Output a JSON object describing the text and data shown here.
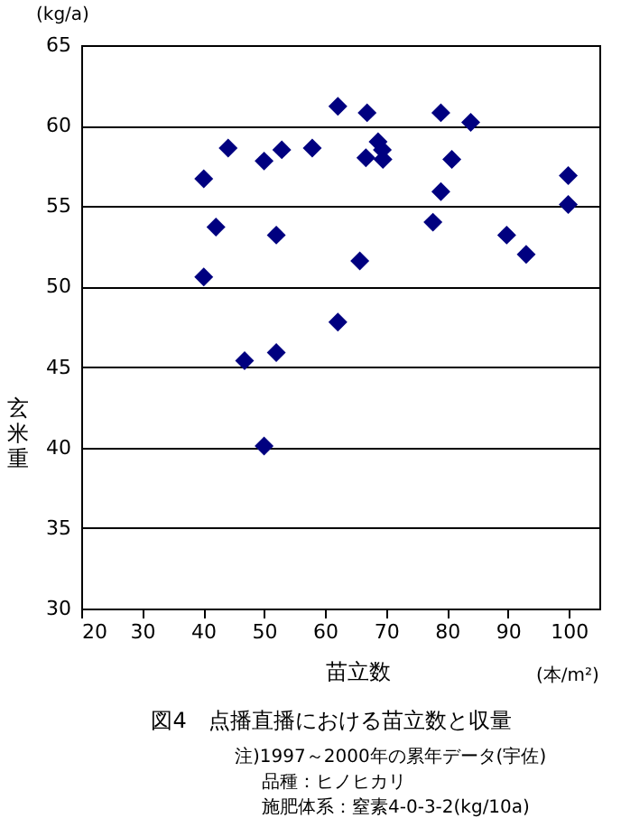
{
  "chart_data": {
    "type": "scatter",
    "title": "図4　点播直播における苗立数と収量",
    "xlabel": "苗立数",
    "ylabel": "玄米重",
    "annotations": [
      "(kg/a)",
      "(本/m²)",
      "注)1997～2000年の累年データ(宇佐)",
      "品種：ヒノヒカリ",
      "施肥体系：窒素4-0-3-2(kg/10a)"
    ],
    "x": [
      40.1,
      42.1,
      44.1,
      40.1,
      50.0,
      52.9,
      52.0,
      57.9,
      62.1,
      66.9,
      66.7,
      65.7,
      62.1,
      68.3,
      68.7,
      69.4,
      69.5,
      79.0,
      83.9,
      80.8,
      79.0,
      77.7,
      89.8,
      93.0,
      99.9,
      99.9,
      46.8,
      52.0,
      50.0
    ],
    "series": [
      {
        "color": "#000080",
        "values": [
          56.7,
          53.7,
          58.6,
          50.6,
          57.8,
          58.5,
          53.2,
          58.6,
          61.2,
          60.8,
          58.0,
          51.6,
          47.8,
          null,
          59.0,
          58.5,
          57.9,
          60.8,
          60.2,
          57.9,
          55.9,
          54.0,
          53.2,
          52.0,
          56.9,
          55.1,
          45.4,
          45.9,
          40.1
        ]
      }
    ],
    "xlim": [
      20,
      105
    ],
    "xticks": [
      20,
      30,
      40,
      50,
      60,
      70,
      80,
      90,
      100
    ],
    "ylim": [
      30,
      65
    ],
    "yticks": [
      30,
      35,
      40,
      45,
      50,
      55,
      60,
      65
    ],
    "grid": "y",
    "marker": "diamond"
  }
}
